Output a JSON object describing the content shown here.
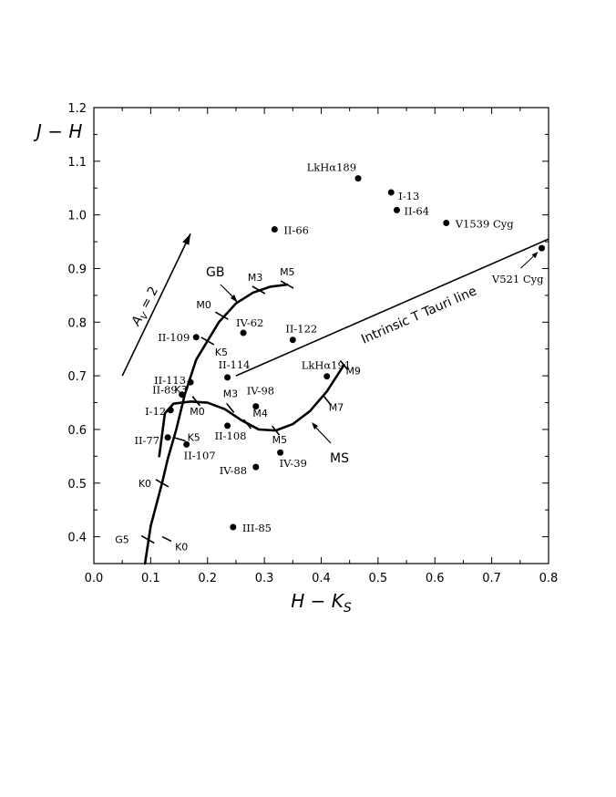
{
  "chart_data": {
    "type": "scatter",
    "xlabel": "H − K",
    "xlabel_sub": "S",
    "ylabel": "J − H",
    "xlim": [
      0.0,
      0.8
    ],
    "ylim": [
      0.35,
      1.2
    ],
    "x_ticks": [
      0.0,
      0.1,
      0.2,
      0.3,
      0.4,
      0.5,
      0.6,
      0.7,
      0.8
    ],
    "x_tick_labels": [
      "0.0",
      "0.1",
      "0.2",
      "0.3",
      "0.4",
      "0.5",
      "0.6",
      "0.7",
      "0.8"
    ],
    "y_ticks": [
      0.4,
      0.5,
      0.6,
      0.7,
      0.8,
      0.9,
      1.0,
      1.1,
      1.2
    ],
    "y_tick_labels": [
      "0.4",
      "0.5",
      "0.6",
      "0.7",
      "0.8",
      "0.9",
      "1.0",
      "1.1",
      "1.2"
    ],
    "grid": false,
    "points": [
      {
        "name": "LkHα189",
        "x": 0.465,
        "y": 1.068
      },
      {
        "name": "I-13",
        "x": 0.523,
        "y": 1.042
      },
      {
        "name": "II-64",
        "x": 0.533,
        "y": 1.009
      },
      {
        "name": "V1539 Cyg",
        "x": 0.62,
        "y": 0.985
      },
      {
        "name": "II-66",
        "x": 0.318,
        "y": 0.973
      },
      {
        "name": "V521 Cyg",
        "x": 0.788,
        "y": 0.938
      },
      {
        "name": "IV-62",
        "x": 0.263,
        "y": 0.78
      },
      {
        "name": "II-122",
        "x": 0.35,
        "y": 0.767
      },
      {
        "name": "II-109",
        "x": 0.18,
        "y": 0.772
      },
      {
        "name": "II-114",
        "x": 0.235,
        "y": 0.697
      },
      {
        "name": "LkHα191",
        "x": 0.41,
        "y": 0.699
      },
      {
        "name": "II-113",
        "x": 0.17,
        "y": 0.688
      },
      {
        "name": "II-89",
        "x": 0.155,
        "y": 0.665
      },
      {
        "name": "IV-98",
        "x": 0.285,
        "y": 0.643
      },
      {
        "name": "I-12",
        "x": 0.135,
        "y": 0.636
      },
      {
        "name": "II-108",
        "x": 0.235,
        "y": 0.607
      },
      {
        "name": "II-77",
        "x": 0.13,
        "y": 0.585
      },
      {
        "name": "II-107",
        "x": 0.163,
        "y": 0.572
      },
      {
        "name": "IV-39",
        "x": 0.328,
        "y": 0.557
      },
      {
        "name": "IV-88",
        "x": 0.285,
        "y": 0.53
      },
      {
        "name": "III-85",
        "x": 0.245,
        "y": 0.418
      }
    ],
    "curves": {
      "MS": {
        "label": "MS",
        "points": [
          [
            0.115,
            0.55
          ],
          [
            0.125,
            0.63
          ],
          [
            0.14,
            0.648
          ],
          [
            0.17,
            0.652
          ],
          [
            0.2,
            0.65
          ],
          [
            0.23,
            0.638
          ],
          [
            0.26,
            0.617
          ],
          [
            0.29,
            0.6
          ],
          [
            0.32,
            0.598
          ],
          [
            0.35,
            0.61
          ],
          [
            0.38,
            0.634
          ],
          [
            0.41,
            0.671
          ],
          [
            0.44,
            0.72
          ]
        ],
        "markers": [
          {
            "label": "K0",
            "x": 0.13,
            "y": 0.395
          },
          {
            "label": "K5",
            "x": 0.15,
            "y": 0.582
          },
          {
            "label": "K3",
            "x": 0.165,
            "y": 0.648
          },
          {
            "label": "M0",
            "x": 0.18,
            "y": 0.653
          },
          {
            "label": "M3",
            "x": 0.24,
            "y": 0.64
          },
          {
            "label": "M4",
            "x": 0.27,
            "y": 0.61
          },
          {
            "label": "M5",
            "x": 0.32,
            "y": 0.598
          },
          {
            "label": "M7",
            "x": 0.41,
            "y": 0.655
          },
          {
            "label": "M9",
            "x": 0.46,
            "y": 0.72
          }
        ]
      },
      "GB": {
        "label": "GB",
        "points": [
          [
            0.09,
            0.35
          ],
          [
            0.1,
            0.42
          ],
          [
            0.11,
            0.46
          ],
          [
            0.12,
            0.5
          ],
          [
            0.13,
            0.545
          ],
          [
            0.145,
            0.6
          ],
          [
            0.16,
            0.665
          ],
          [
            0.18,
            0.73
          ],
          [
            0.2,
            0.765
          ],
          [
            0.22,
            0.8
          ],
          [
            0.25,
            0.835
          ],
          [
            0.28,
            0.855
          ],
          [
            0.31,
            0.866
          ],
          [
            0.34,
            0.87
          ]
        ],
        "markers": [
          {
            "label": "G5",
            "x": 0.095,
            "y": 0.395
          },
          {
            "label": "K0",
            "x": 0.12,
            "y": 0.5
          },
          {
            "label": "K5",
            "x": 0.2,
            "y": 0.765
          },
          {
            "label": "M0",
            "x": 0.22,
            "y": 0.81
          },
          {
            "label": "M3",
            "x": 0.29,
            "y": 0.86
          },
          {
            "label": "M5",
            "x": 0.34,
            "y": 0.87
          }
        ]
      },
      "ctts": {
        "label": "Intrinsic T Tauri line",
        "start": [
          0.25,
          0.7
        ],
        "end": [
          0.8,
          0.955
        ]
      }
    },
    "reddening": {
      "label_main": "A",
      "label_sub": "V",
      "label_value": " = 2",
      "start": [
        0.05,
        0.7
      ],
      "end": [
        0.17,
        0.965
      ]
    }
  }
}
